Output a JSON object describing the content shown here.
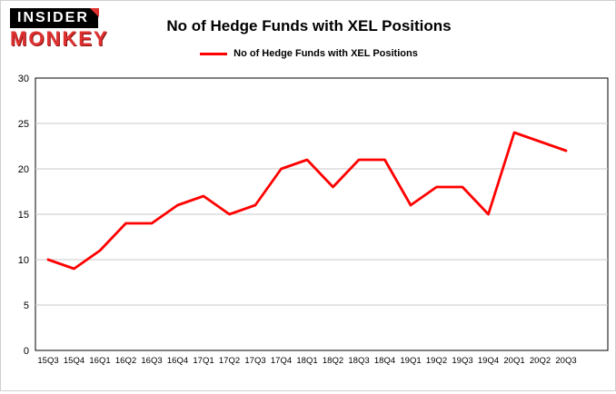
{
  "logo": {
    "line1": "INSIDER",
    "line2": "MONKEY"
  },
  "title": "No of Hedge Funds with XEL Positions",
  "legend": {
    "label": "No of Hedge Funds with XEL Positions",
    "color": "#ff0000"
  },
  "chart_data": {
    "type": "line",
    "title": "No of Hedge Funds with XEL Positions",
    "categories": [
      "15Q3",
      "15Q4",
      "16Q1",
      "16Q2",
      "16Q3",
      "16Q4",
      "17Q1",
      "17Q2",
      "17Q3",
      "17Q4",
      "18Q1",
      "18Q2",
      "18Q3",
      "18Q4",
      "19Q1",
      "19Q2",
      "19Q3",
      "19Q4",
      "20Q1",
      "20Q2",
      "20Q3"
    ],
    "values": [
      10,
      9,
      11,
      14,
      14,
      16,
      17,
      15,
      16,
      20,
      21,
      18,
      21,
      21,
      16,
      18,
      18,
      15,
      24,
      23,
      22
    ],
    "xlabel": "",
    "ylabel": "",
    "ylim": [
      0,
      30
    ],
    "yticks": [
      0,
      5,
      10,
      15,
      20,
      25,
      30
    ],
    "line_color": "#ff0000",
    "grid": true,
    "grid_color": "#c9c9c9",
    "plot_border_color": "#000000",
    "legend_position": "top"
  }
}
